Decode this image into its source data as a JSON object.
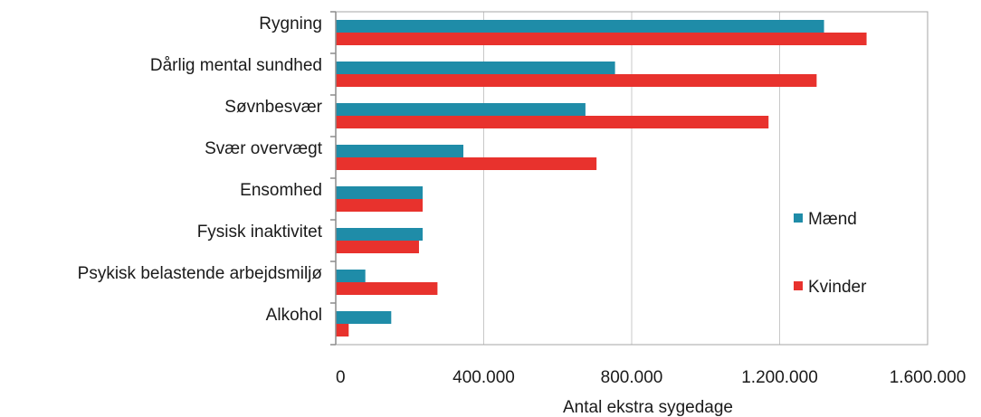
{
  "chart_data": {
    "type": "bar",
    "orientation": "horizontal",
    "categories": [
      "Rygning",
      "Dårlig mental sundhed",
      "Søvnbesvær",
      "Svær overvægt",
      "Ensomhed",
      "Fysisk inaktivitet",
      "Psykisk belastende arbejdsmiljø",
      "Alkohol"
    ],
    "series": [
      {
        "name": "Mænd",
        "color": "#1F8CA8",
        "values": [
          1320000,
          755000,
          675000,
          345000,
          235000,
          235000,
          80000,
          150000
        ]
      },
      {
        "name": "Kvinder",
        "color": "#E8322D",
        "values": [
          1435000,
          1300000,
          1170000,
          705000,
          235000,
          225000,
          275000,
          35000
        ]
      }
    ],
    "xlabel": "Antal ekstra sygedage",
    "ylabel": "",
    "xlim": [
      0,
      1600000
    ],
    "xticks": [
      "0",
      "400.000",
      "800.000",
      "1.200.000",
      "1.600.000"
    ],
    "grid": true,
    "legend_position": "right"
  }
}
